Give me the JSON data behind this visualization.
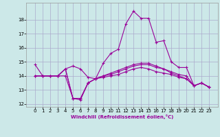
{
  "xlabel": "Windchill (Refroidissement éolien,°C)",
  "bg_color": "#cce8e8",
  "grid_color": "#aaaacc",
  "line_color": "#990099",
  "hours": [
    0,
    1,
    2,
    3,
    4,
    5,
    6,
    7,
    8,
    9,
    10,
    11,
    12,
    13,
    14,
    15,
    16,
    17,
    18,
    19,
    20,
    21,
    22,
    23
  ],
  "line1": [
    14.8,
    14.0,
    14.0,
    14.0,
    14.5,
    14.7,
    14.5,
    13.9,
    13.8,
    14.9,
    15.6,
    15.9,
    17.7,
    18.6,
    18.1,
    18.1,
    16.4,
    16.5,
    15.0,
    14.6,
    14.6,
    13.3,
    13.5,
    13.2
  ],
  "line2": [
    14.0,
    14.0,
    14.0,
    14.0,
    14.5,
    12.4,
    12.4,
    13.5,
    13.8,
    14.0,
    14.2,
    14.4,
    14.6,
    14.8,
    14.9,
    14.9,
    14.7,
    14.5,
    14.3,
    14.1,
    14.0,
    13.3,
    13.5,
    13.2
  ],
  "line3": [
    14.0,
    14.0,
    14.0,
    14.0,
    14.0,
    12.4,
    12.4,
    13.5,
    13.8,
    13.9,
    14.0,
    14.1,
    14.3,
    14.5,
    14.6,
    14.5,
    14.3,
    14.2,
    14.1,
    13.9,
    13.8,
    13.3,
    13.5,
    13.2
  ],
  "line4": [
    14.0,
    14.0,
    14.0,
    14.0,
    14.5,
    12.4,
    12.3,
    13.5,
    13.8,
    14.0,
    14.1,
    14.3,
    14.5,
    14.7,
    14.8,
    14.8,
    14.6,
    14.5,
    14.2,
    14.0,
    13.8,
    13.3,
    13.5,
    13.2
  ],
  "ylim": [
    11.8,
    19.2
  ],
  "yticks": [
    12,
    13,
    14,
    15,
    16,
    17,
    18
  ],
  "ytick_labels": [
    "12",
    "13",
    "14",
    "15",
    "16",
    "17",
    "18"
  ],
  "marker": "+",
  "markersize": 3,
  "linewidth": 0.8,
  "tick_fontsize": 5.0,
  "xlabel_fontsize": 5.0
}
